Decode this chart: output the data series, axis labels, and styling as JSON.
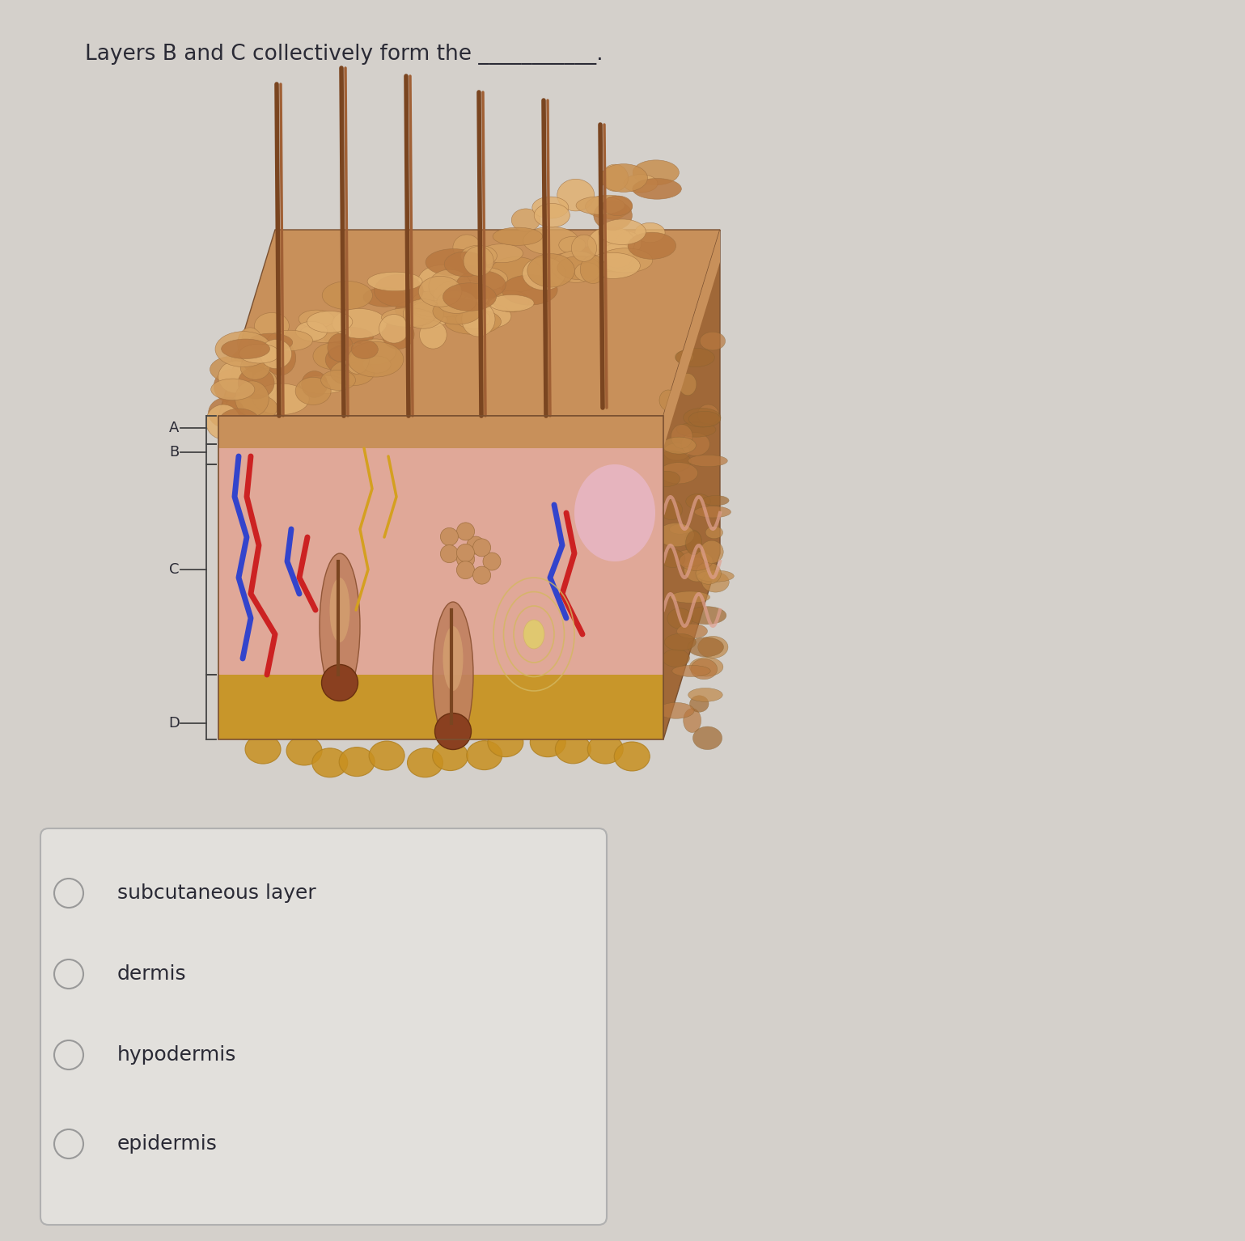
{
  "background_color": "#d4d0cb",
  "title_text": "Layers B and C collectively form the ___________.",
  "title_fontsize": 19,
  "title_color": "#2a2a35",
  "labels": [
    "A",
    "B",
    "C",
    "D"
  ],
  "label_fontsize": 13,
  "label_color": "#2a2a35",
  "answer_box": {
    "facecolor": "#e2e0dc",
    "edgecolor": "#b0b0b0",
    "linewidth": 1.5
  },
  "options": [
    {
      "text": "subcutaneous layer"
    },
    {
      "text": "dermis"
    },
    {
      "text": "hypodermis"
    },
    {
      "text": "epidermis"
    }
  ],
  "option_fontsize": 18,
  "option_color": "#2a2a35",
  "circle_edgecolor": "#999999",
  "circle_facecolor": "none",
  "circle_linewidth": 1.5,
  "skin_colors": {
    "epidermis_top": "#c8905a",
    "epidermis_side": "#b87845",
    "epidermis_right": "#a06838",
    "dermis_front": "#dda090",
    "dermis_right": "#c08070",
    "dermis_deep": "#e8b0a0",
    "fat_color": "#d4a030",
    "fat_light": "#e8c060",
    "hair_color": "#7a4520",
    "blood_red": "#cc2222",
    "blood_blue": "#3344cc",
    "nerve_yellow": "#d4a020",
    "pink_tissue": "#e8b8c0"
  }
}
